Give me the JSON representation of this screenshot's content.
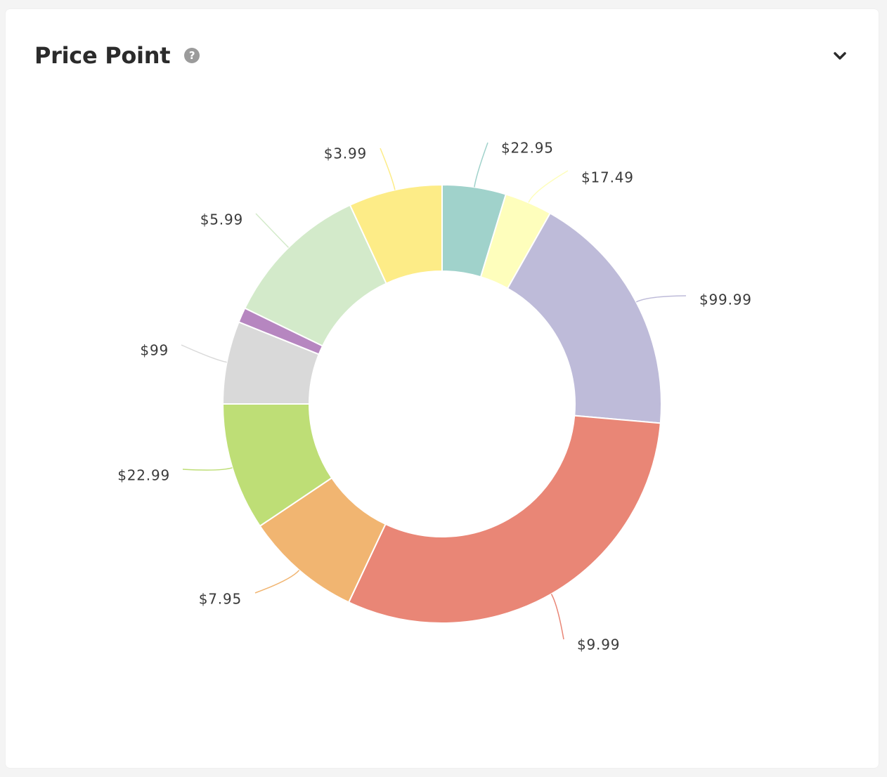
{
  "card": {
    "title": "Price Point",
    "help_icon": "question-circle-icon",
    "collapse_icon": "chevron-down-icon"
  },
  "chart_data": {
    "type": "pie",
    "donut": true,
    "title": "Price Point",
    "categories": [
      "$22.95",
      "$17.49",
      "$99.99",
      "$9.99",
      "$7.95",
      "$22.99",
      "$99",
      "",
      "$5.99",
      "$3.99"
    ],
    "values": [
      4.7,
      3.5,
      18.2,
      30.6,
      8.6,
      9.4,
      6.1,
      1.1,
      10.9,
      6.9
    ],
    "colors": [
      "#a0d2cb",
      "#fefebc",
      "#bebbd9",
      "#e98676",
      "#f1b571",
      "#bede76",
      "#d9d9d9",
      "#b686c0",
      "#d3eaca",
      "#fdec87"
    ],
    "legend": "none"
  }
}
